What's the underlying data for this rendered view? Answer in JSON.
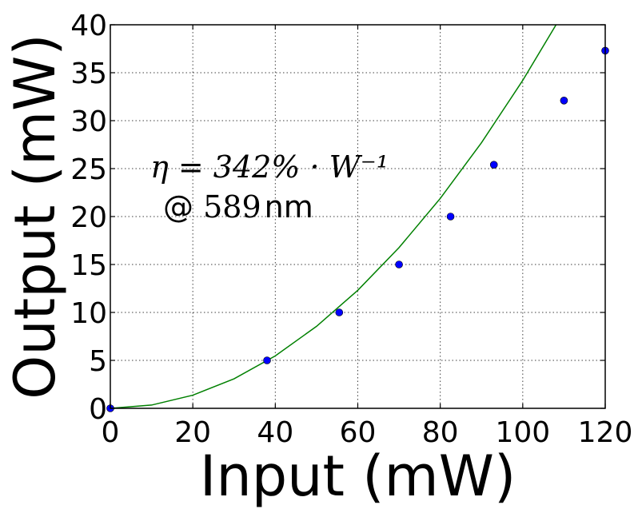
{
  "chart_data": {
    "type": "scatter",
    "title": "",
    "xlabel": "Input (mW)",
    "ylabel": "Output (mW)",
    "xlim": [
      0,
      120
    ],
    "ylim": [
      0,
      40
    ],
    "xticks": [
      0,
      20,
      40,
      60,
      80,
      100,
      120
    ],
    "yticks": [
      0,
      5,
      10,
      15,
      20,
      25,
      30,
      35,
      40
    ],
    "grid": true,
    "series": [
      {
        "kind": "markers",
        "color": "#0000ff",
        "marker": "circle",
        "x": [
          0,
          38,
          55.5,
          70,
          82.5,
          93,
          110,
          120
        ],
        "y": [
          0,
          5,
          10,
          15,
          20,
          25.4,
          32.1,
          37.3
        ]
      },
      {
        "kind": "fit-curve",
        "color": "#008000",
        "model": "quadratic",
        "x": [
          0,
          10,
          20,
          30,
          40,
          50,
          60,
          70,
          80,
          90,
          100,
          110,
          120
        ],
        "y": [
          0,
          0.34,
          1.37,
          3.08,
          5.47,
          8.55,
          12.31,
          16.76,
          21.89,
          27.7,
          34.2,
          41.38,
          49.25
        ]
      }
    ],
    "annotations": {
      "efficiency": "η = 342% · W⁻¹",
      "wavelength_prefix": "@ ",
      "wavelength_value": "589",
      "wavelength_unit": "nm"
    }
  }
}
